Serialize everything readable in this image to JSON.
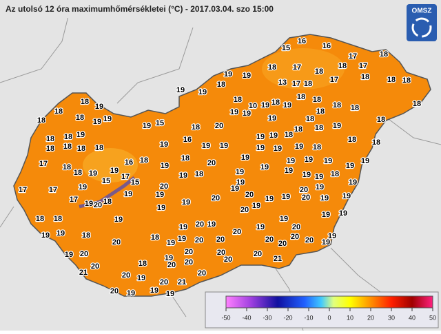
{
  "header": {
    "title": "Az utolsó 12 óra maximumhőmérsékletei (°C) - 2017.03.04. szo 15:00",
    "logo": "OMSZ"
  },
  "stations": [
    15,
    16,
    16,
    17,
    18,
    18,
    17,
    18,
    17,
    19,
    19,
    18,
    17,
    18,
    18,
    18,
    13,
    17,
    18,
    18,
    19,
    19,
    18,
    10,
    19,
    18,
    19,
    18,
    18,
    18,
    18,
    18,
    18,
    18,
    19,
    18,
    18,
    18,
    19,
    19,
    19,
    15,
    18,
    20,
    19,
    19,
    18,
    18,
    19,
    19,
    18,
    18,
    19,
    18,
    19,
    18,
    18,
    18,
    18,
    19,
    18,
    18,
    18,
    18,
    19,
    16,
    19,
    19,
    19,
    19,
    19,
    18,
    17,
    18,
    18,
    19,
    16,
    18,
    19,
    18,
    20,
    19,
    19,
    19,
    19,
    19,
    19,
    19,
    19,
    17,
    17,
    19,
    15,
    17,
    15,
    20,
    19,
    18,
    19,
    19,
    19,
    19,
    19,
    18,
    19,
    20,
    19,
    17,
    19,
    20,
    18,
    19,
    19,
    19,
    20,
    19,
    20,
    19,
    19,
    20,
    19,
    19,
    18,
    18,
    19,
    19,
    20,
    19,
    19,
    19,
    19,
    19,
    19,
    18,
    19,
    20,
    19,
    19,
    20,
    18,
    19,
    19,
    20,
    20,
    20,
    20,
    20,
    20,
    19,
    19,
    20,
    19,
    20,
    19,
    20,
    20,
    20,
    20,
    20,
    18,
    20,
    20,
    20,
    21,
    21,
    20,
    19,
    20,
    21,
    20,
    20,
    19,
    19,
    19
  ],
  "colorbar": {
    "ticks": [
      -50,
      -40,
      -30,
      -20,
      -10,
      0,
      10,
      20,
      30,
      40,
      50
    ]
  }
}
